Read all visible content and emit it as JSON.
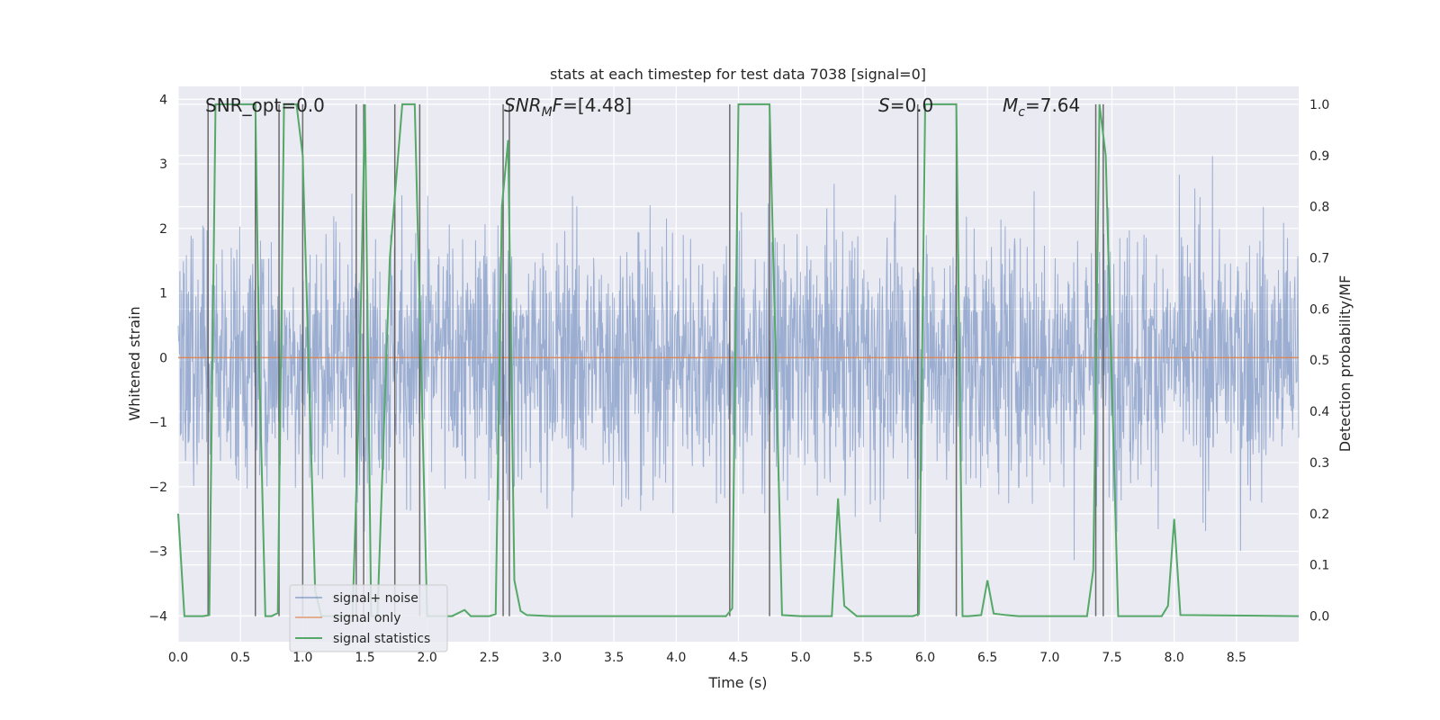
{
  "chart_data": {
    "type": "line",
    "title": "stats at each timestep for test data 7038 [signal=0]",
    "xlabel": "Time (s)",
    "ylabel": "Whitened strain",
    "y2label": "Detection probability/MF",
    "xlim": [
      0,
      9
    ],
    "ylim": [
      -4.4,
      4.2
    ],
    "y2lim": [
      -0.05,
      1.035
    ],
    "grid": true,
    "legend_position": "lower-left",
    "x_ticks": [
      "0.0",
      "0.5",
      "1.0",
      "1.5",
      "2.0",
      "2.5",
      "3.0",
      "3.5",
      "4.0",
      "4.5",
      "5.0",
      "5.5",
      "6.0",
      "6.5",
      "7.0",
      "7.5",
      "8.0",
      "8.5"
    ],
    "y_ticks": [
      "−4",
      "−3",
      "−2",
      "−1",
      "0",
      "1",
      "2",
      "3",
      "4"
    ],
    "y2_ticks": [
      "0.0",
      "0.1",
      "0.2",
      "0.3",
      "0.4",
      "0.5",
      "0.6",
      "0.7",
      "0.8",
      "0.9",
      "1.0"
    ],
    "annotations": {
      "snr_opt": "SNR_opt=0.0",
      "snr_mf_main": "SNR",
      "snr_mf_sub": "M",
      "snr_mf_F": "F",
      "snr_mf_val": "=[4.48]",
      "s_label": "S",
      "s_val": "=0.0",
      "mc_main": "M",
      "mc_sub": "c",
      "mc_val": "=7.64"
    },
    "series": [
      {
        "name": "signal+ noise",
        "color": "#4c72b0",
        "style": "dense noise, roughly within ±2.5, peaks to about ±3.8",
        "band": [
          -2.5,
          2.5
        ]
      },
      {
        "name": "signal only",
        "color": "#dd8452",
        "x": [
          0,
          9
        ],
        "y": [
          0,
          0
        ]
      },
      {
        "name": "signal statistics",
        "color": "#55a868",
        "axis": "right",
        "x": [
          0.0,
          0.05,
          0.2,
          0.25,
          0.3,
          0.62,
          0.65,
          0.7,
          0.75,
          0.8,
          0.85,
          0.95,
          1.0,
          1.1,
          1.15,
          1.4,
          1.45,
          1.5,
          1.55,
          1.6,
          1.7,
          1.8,
          1.9,
          1.95,
          2.0,
          2.05,
          2.2,
          2.3,
          2.35,
          2.5,
          2.55,
          2.6,
          2.65,
          2.7,
          2.75,
          2.8,
          3.0,
          4.4,
          4.45,
          4.5,
          4.75,
          4.8,
          4.85,
          5.0,
          5.25,
          5.3,
          5.35,
          5.45,
          5.9,
          5.95,
          6.0,
          6.25,
          6.3,
          6.35,
          6.45,
          6.5,
          6.55,
          6.65,
          6.75,
          7.3,
          7.35,
          7.4,
          7.45,
          7.55,
          7.9,
          7.95,
          8.0,
          8.05,
          9.0
        ],
        "y": [
          0.2,
          0.0,
          0.0,
          0.002,
          1.0,
          1.0,
          0.5,
          0.0,
          0.0,
          0.006,
          1.0,
          1.0,
          0.9,
          0.05,
          0.0,
          0.0,
          0.4,
          1.0,
          0.0,
          0.0,
          0.7,
          1.0,
          1.0,
          0.5,
          0.0,
          0.0,
          0.0,
          0.012,
          0.0,
          0.0,
          0.004,
          0.8,
          0.93,
          0.07,
          0.01,
          0.002,
          0.0,
          0.0,
          0.015,
          1.0,
          1.0,
          0.5,
          0.002,
          0.0,
          0.0,
          0.23,
          0.02,
          0.0,
          0.0,
          0.004,
          1.0,
          1.0,
          0.0,
          0.0,
          0.002,
          0.07,
          0.005,
          0.002,
          0.0,
          0.0,
          0.09,
          1.0,
          0.9,
          0.0,
          0.0,
          0.02,
          0.19,
          0.002,
          0.0
        ]
      },
      {
        "name": "",
        "color": "#555555",
        "style": "vertical markers",
        "x": [
          0.24,
          0.62,
          0.81,
          1.0,
          1.43,
          1.49,
          1.74,
          1.94,
          2.61,
          2.66,
          4.43,
          4.75,
          5.94,
          6.25,
          7.37,
          7.43
        ]
      }
    ]
  },
  "legend": {
    "items": [
      {
        "label": "signal+ noise",
        "color": "#4c72b0"
      },
      {
        "label": "signal only",
        "color": "#dd8452"
      },
      {
        "label": "signal statistics",
        "color": "#55a868"
      }
    ]
  }
}
